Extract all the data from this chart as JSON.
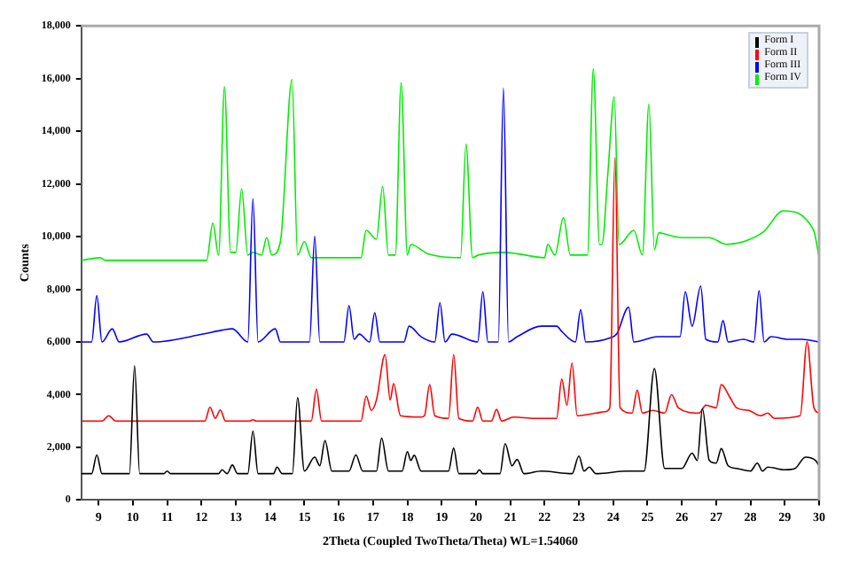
{
  "chart_data": {
    "type": "line",
    "xlabel": "2Theta (Coupled TwoTheta/Theta) WL=1.54060",
    "ylabel": "Counts",
    "xlim": [
      8.5,
      30
    ],
    "xticks": [
      9,
      10,
      11,
      12,
      13,
      14,
      15,
      16,
      17,
      18,
      19,
      20,
      21,
      22,
      23,
      24,
      25,
      26,
      27,
      28,
      29,
      30
    ],
    "ylim": [
      0,
      18000
    ],
    "yticks": [
      0,
      {
        "value": 2000,
        "label": "2,000"
      },
      {
        "value": 4000,
        "label": "4,000"
      },
      {
        "value": 6000,
        "label": "6,000"
      },
      {
        "value": 8000,
        "label": "8,000"
      },
      {
        "value": 10000,
        "label": "10,000"
      },
      {
        "value": 12000,
        "label": "12,000"
      },
      {
        "value": 14000,
        "label": "14,000"
      },
      {
        "value": 16000,
        "label": "16,000"
      },
      {
        "value": 18000,
        "label": "18,000"
      }
    ],
    "grid": false,
    "legend": "top right",
    "marker": "none",
    "line_style": "solid",
    "series": [
      {
        "name": "Form I",
        "color": "#000000",
        "x": [
          8.5,
          8.8,
          8.95,
          9.1,
          9.9,
          10.05,
          10.2,
          10.9,
          11.0,
          11.1,
          12.5,
          12.6,
          12.75,
          12.9,
          13.05,
          13.35,
          13.5,
          13.65,
          14.1,
          14.2,
          14.35,
          14.65,
          14.8,
          15.0,
          15.3,
          15.45,
          15.6,
          15.8,
          16.3,
          16.5,
          16.7,
          17.1,
          17.25,
          17.45,
          17.85,
          18.0,
          18.1,
          18.2,
          18.4,
          18.6,
          19.2,
          19.35,
          19.5,
          20.0,
          20.1,
          20.2,
          20.7,
          20.85,
          21.05,
          21.2,
          21.4,
          21.9,
          22.8,
          23.0,
          23.15,
          23.3,
          23.5,
          24.4,
          24.9,
          25.2,
          25.5,
          26.0,
          26.3,
          26.45,
          26.6,
          26.8,
          27.0,
          27.15,
          27.35,
          27.6,
          28.0,
          28.2,
          28.35,
          28.5,
          29.0,
          29.3,
          29.6,
          29.9,
          30.0
        ],
        "values": [
          1000,
          1000,
          1710,
          1000,
          1000,
          5100,
          1000,
          1000,
          1100,
          1000,
          1000,
          1150,
          1000,
          1330,
          1000,
          1000,
          2620,
          1000,
          1000,
          1250,
          1000,
          1000,
          3890,
          1100,
          1630,
          1300,
          2260,
          1100,
          1100,
          1710,
          1100,
          1100,
          2350,
          1100,
          1100,
          1840,
          1500,
          1700,
          1100,
          1100,
          1100,
          1970,
          1000,
          1000,
          1150,
          1000,
          1000,
          2140,
          1300,
          1540,
          1000,
          1100,
          1000,
          1670,
          1100,
          1250,
          1000,
          1100,
          1100,
          4990,
          1200,
          1200,
          1780,
          1500,
          3470,
          1500,
          1400,
          1950,
          1300,
          1200,
          1100,
          1400,
          1100,
          1250,
          1150,
          1200,
          1630,
          1500,
          1300
        ]
      },
      {
        "name": "Form II",
        "color": "#ff0000",
        "x": [
          8.5,
          9.1,
          9.3,
          9.5,
          12.1,
          12.25,
          12.4,
          12.55,
          12.7,
          13.4,
          13.5,
          13.6,
          15.2,
          15.35,
          15.5,
          16.65,
          16.8,
          16.95,
          17.1,
          17.35,
          17.5,
          17.6,
          17.8,
          18.4,
          18.5,
          18.65,
          18.8,
          19.2,
          19.35,
          19.5,
          19.9,
          20.05,
          20.2,
          20.45,
          20.6,
          20.75,
          21.1,
          21.7,
          22.35,
          22.5,
          22.65,
          22.8,
          22.95,
          23.5,
          23.75,
          23.9,
          24.05,
          24.2,
          24.55,
          24.7,
          24.85,
          25.15,
          25.5,
          25.7,
          25.9,
          26.5,
          26.7,
          27.0,
          27.15,
          27.4,
          27.6,
          27.95,
          28.3,
          28.5,
          28.7,
          29.45,
          29.65,
          29.85,
          30.0
        ],
        "values": [
          3000,
          3000,
          3200,
          3000,
          3000,
          3530,
          3100,
          3420,
          3000,
          3000,
          3050,
          3000,
          3000,
          4210,
          3000,
          3000,
          3950,
          3400,
          3800,
          5520,
          3800,
          4420,
          3200,
          3150,
          3200,
          4380,
          3200,
          3100,
          5520,
          3100,
          3000,
          3530,
          3000,
          3000,
          3440,
          3000,
          3150,
          3100,
          3100,
          4590,
          3600,
          5200,
          3200,
          3300,
          3350,
          3500,
          12990,
          3500,
          3300,
          4170,
          3300,
          3400,
          3300,
          4000,
          3500,
          3300,
          3600,
          3500,
          4380,
          3900,
          3500,
          3400,
          3200,
          3300,
          3100,
          3200,
          6010,
          3500,
          3300
        ]
      },
      {
        "name": "Form III",
        "color": "#0000ff",
        "x": [
          8.5,
          8.8,
          8.95,
          9.1,
          9.4,
          9.6,
          10.4,
          10.6,
          12.05,
          12.6,
          12.9,
          13.35,
          13.5,
          13.65,
          14.15,
          14.3,
          15.15,
          15.3,
          15.45,
          16.15,
          16.3,
          16.45,
          16.6,
          16.9,
          17.05,
          17.2,
          17.9,
          18.05,
          18.4,
          18.8,
          18.95,
          19.1,
          19.3,
          20.05,
          20.2,
          20.35,
          20.65,
          20.8,
          20.95,
          21.2,
          21.9,
          22.35,
          22.5,
          22.9,
          23.05,
          23.2,
          23.9,
          24.1,
          24.45,
          24.6,
          25.3,
          25.6,
          25.95,
          26.1,
          26.3,
          26.55,
          26.7,
          27.05,
          27.2,
          27.35,
          27.8,
          28.1,
          28.25,
          28.4,
          28.6,
          29.1,
          29.5,
          30.0
        ],
        "values": [
          6000,
          6000,
          7760,
          6000,
          6500,
          6000,
          6300,
          6000,
          6300,
          6450,
          6500,
          6000,
          11440,
          6000,
          6500,
          6000,
          6000,
          10020,
          6000,
          6000,
          7380,
          6100,
          6300,
          6000,
          7110,
          6000,
          6000,
          6600,
          6200,
          6000,
          7490,
          6000,
          6300,
          6000,
          7910,
          6000,
          6000,
          15630,
          6000,
          6200,
          6600,
          6600,
          6400,
          6000,
          7230,
          6000,
          6150,
          6300,
          7320,
          6000,
          6200,
          6200,
          6200,
          7910,
          6600,
          8120,
          6100,
          6000,
          6810,
          6000,
          6100,
          6000,
          7950,
          6000,
          6200,
          6100,
          6100,
          6000
        ]
      },
      {
        "name": "Form IV",
        "color": "#00ee00",
        "x": [
          8.5,
          9.05,
          9.2,
          12.15,
          12.33,
          12.5,
          12.67,
          12.85,
          13.0,
          13.17,
          13.35,
          13.5,
          13.75,
          13.9,
          14.05,
          14.3,
          14.64,
          14.8,
          15.0,
          15.2,
          16.65,
          16.8,
          17.1,
          17.28,
          17.45,
          17.65,
          17.82,
          18.0,
          18.1,
          18.6,
          19.55,
          19.71,
          19.9,
          20.07,
          20.8,
          21.2,
          22.0,
          22.09,
          22.3,
          22.55,
          22.75,
          23.25,
          23.42,
          23.6,
          23.67,
          23.85,
          24.03,
          24.17,
          24.6,
          24.85,
          25.04,
          25.2,
          25.33,
          25.44,
          26.01,
          26.8,
          27.3,
          27.8,
          28.38,
          28.95,
          29.84,
          30.0
        ],
        "values": [
          9100,
          9200,
          9100,
          9100,
          10510,
          9300,
          15690,
          9400,
          9400,
          11820,
          9300,
          9400,
          9300,
          9960,
          9300,
          9800,
          15970,
          9300,
          9810,
          9200,
          9200,
          10240,
          9900,
          11910,
          9300,
          9300,
          15840,
          9300,
          9700,
          9350,
          9200,
          13510,
          9200,
          9300,
          9400,
          9350,
          9200,
          9710,
          9300,
          10720,
          9300,
          9300,
          16370,
          9700,
          9700,
          12500,
          15310,
          9700,
          10240,
          9300,
          15040,
          9500,
          10150,
          10120,
          9960,
          9960,
          9710,
          9810,
          10180,
          10980,
          10240,
          9200
        ]
      }
    ]
  }
}
